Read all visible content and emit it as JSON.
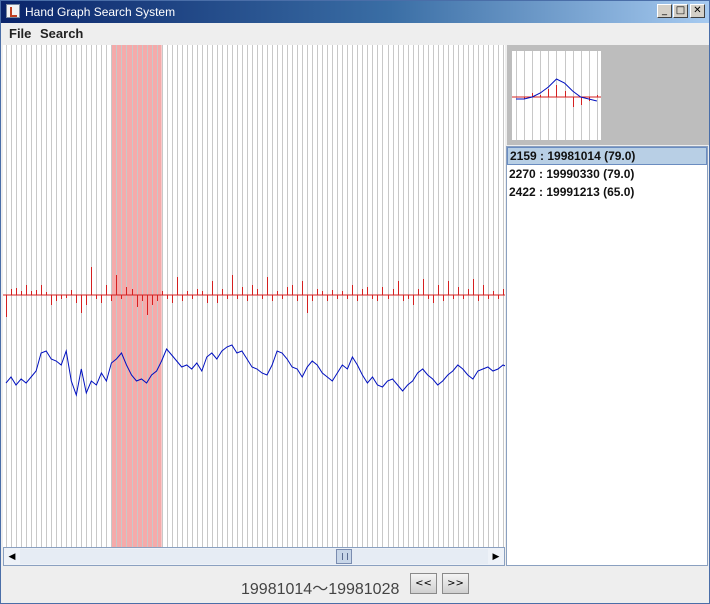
{
  "window": {
    "title": "Hand Graph Search System",
    "controls": {
      "minimize": "_",
      "maximize": "□",
      "close": "✕"
    }
  },
  "menu": {
    "items": [
      "File",
      "Search"
    ]
  },
  "graph": {
    "highlight_color": "#f5aaaa",
    "bar_color": "#d42020",
    "line_color": "#0010c0",
    "highlight_start_index": 21,
    "highlight_end_index": 31,
    "bars": [
      -22,
      6,
      7,
      4,
      10,
      4,
      5,
      10,
      3,
      -10,
      -6,
      -4,
      -3,
      5,
      -8,
      -18,
      -10,
      28,
      -4,
      -8,
      10,
      -6,
      20,
      -4,
      8,
      6,
      -12,
      -6,
      -20,
      -10,
      -6,
      4,
      -4,
      -8,
      18,
      -6,
      4,
      -4,
      6,
      4,
      -8,
      14,
      -8,
      6,
      -4,
      20,
      -4,
      8,
      -6,
      10,
      6,
      -4,
      18,
      -6,
      4,
      -4,
      8,
      10,
      -6,
      14,
      -18,
      -6,
      6,
      4,
      -6,
      5,
      -4,
      4,
      -4,
      10,
      -6,
      6,
      8,
      -4,
      -6,
      8,
      -4,
      6,
      14,
      -6,
      -4,
      -10,
      6,
      16,
      -4,
      -8,
      10,
      -6,
      14,
      -4,
      8,
      -4,
      6,
      16,
      -6,
      10,
      -4,
      4,
      -4,
      6
    ],
    "line": [
      -10,
      -4,
      -12,
      -6,
      -10,
      -4,
      2,
      20,
      22,
      14,
      12,
      8,
      22,
      -8,
      -22,
      4,
      -20,
      -8,
      -12,
      0,
      -8,
      10,
      14,
      20,
      8,
      -2,
      -8,
      -6,
      -10,
      -2,
      2,
      12,
      24,
      18,
      12,
      6,
      8,
      4,
      10,
      2,
      16,
      20,
      14,
      22,
      26,
      28,
      20,
      22,
      14,
      6,
      4,
      0,
      -2,
      8,
      22,
      20,
      14,
      6,
      4,
      -4,
      6,
      12,
      8,
      0,
      -4,
      -8,
      0,
      8,
      4,
      16,
      8,
      -2,
      -10,
      -4,
      -12,
      -14,
      -8,
      -6,
      -12,
      -18,
      -12,
      -8,
      0,
      4,
      -2,
      -6,
      -12,
      -8,
      -2,
      2,
      8,
      4,
      -2,
      -6,
      2,
      4,
      6,
      2,
      4,
      8,
      6,
      4,
      2
    ]
  },
  "thumbnail": {
    "bars": [
      0,
      -2,
      4,
      2,
      8,
      12,
      6,
      -10,
      -8,
      -4,
      2
    ],
    "line": [
      -2,
      -2,
      0,
      4,
      10,
      18,
      14,
      6,
      0,
      -2,
      -4
    ]
  },
  "results": [
    {
      "text": "2159 : 19981014 (79.0)",
      "selected": true
    },
    {
      "text": "2270 : 19990330 (79.0)",
      "selected": false
    },
    {
      "text": "2422 : 19991213 (65.0)",
      "selected": false
    }
  ],
  "footer": {
    "date_range": "19981014〜19981028",
    "prev_label": "<<",
    "next_label": ">>"
  },
  "scrollbar": {
    "left_arrow": "◀",
    "right_arrow": "▶",
    "thumb_position": 0.675
  }
}
